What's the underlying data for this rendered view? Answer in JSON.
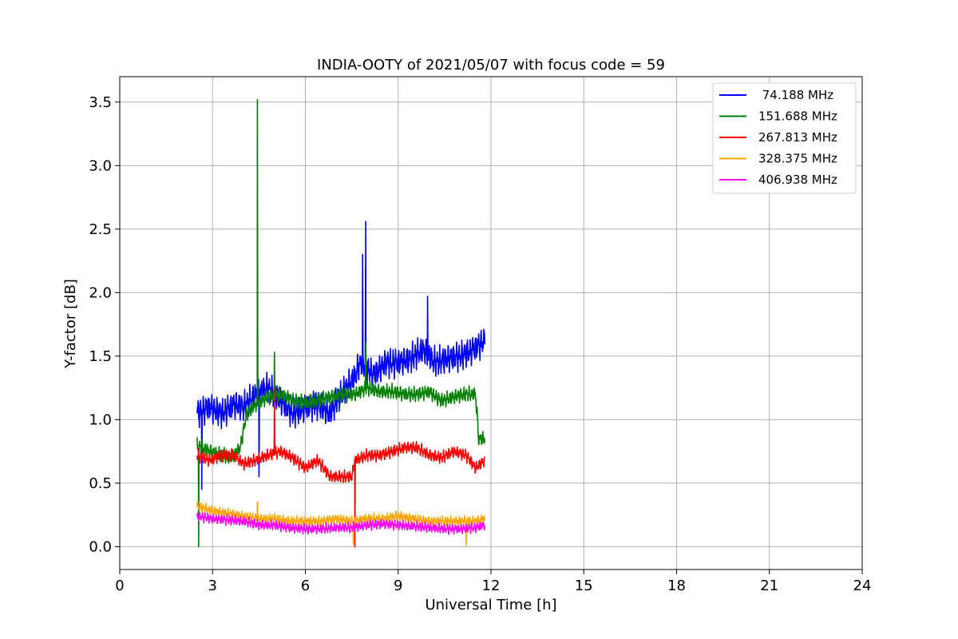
{
  "chart_data": {
    "type": "line",
    "title": "INDIA-OOTY of 2021/05/07 with focus code = 59",
    "xlabel": "Universal Time [h]",
    "ylabel": "Y-factor [dB]",
    "xlim": [
      0,
      24
    ],
    "ylim": [
      -0.18,
      3.7
    ],
    "xticks": [
      0,
      3,
      6,
      9,
      12,
      15,
      18,
      21,
      24
    ],
    "yticks": [
      0.0,
      0.5,
      1.0,
      1.5,
      2.0,
      2.5,
      3.0,
      3.5
    ],
    "xtick_labels": [
      "0",
      "3",
      "6",
      "9",
      "12",
      "15",
      "18",
      "21",
      "24"
    ],
    "ytick_labels": [
      "0.0",
      "0.5",
      "1.0",
      "1.5",
      "2.0",
      "2.5",
      "3.0",
      "3.5"
    ],
    "grid": true,
    "legend_position": "top-right",
    "series": [
      {
        "name": " 74.188 MHz",
        "color": "#0000ff",
        "x_range": [
          2.5,
          11.8
        ],
        "noise": 0.12,
        "values": [
          [
            2.5,
            1.05
          ],
          [
            2.9,
            1.1
          ],
          [
            3.3,
            1.05
          ],
          [
            3.7,
            1.12
          ],
          [
            4.0,
            1.1
          ],
          [
            4.4,
            1.2
          ],
          [
            4.8,
            1.25
          ],
          [
            5.2,
            1.15
          ],
          [
            5.6,
            1.05
          ],
          [
            6.0,
            1.1
          ],
          [
            6.4,
            1.12
          ],
          [
            6.8,
            1.05
          ],
          [
            7.1,
            1.18
          ],
          [
            7.5,
            1.3
          ],
          [
            7.8,
            1.45
          ],
          [
            8.2,
            1.35
          ],
          [
            8.6,
            1.45
          ],
          [
            9.0,
            1.45
          ],
          [
            9.4,
            1.48
          ],
          [
            9.8,
            1.55
          ],
          [
            10.2,
            1.45
          ],
          [
            10.6,
            1.48
          ],
          [
            11.0,
            1.5
          ],
          [
            11.4,
            1.55
          ],
          [
            11.8,
            1.62
          ]
        ],
        "spikes": [
          [
            2.65,
            0.45
          ],
          [
            4.5,
            0.55
          ],
          [
            7.85,
            2.3
          ],
          [
            7.95,
            2.56
          ],
          [
            9.95,
            1.97
          ]
        ]
      },
      {
        "name": "151.688 MHz",
        "color": "#008000",
        "x_range": [
          2.5,
          11.8
        ],
        "noise": 0.06,
        "values": [
          [
            2.5,
            0.8
          ],
          [
            2.9,
            0.75
          ],
          [
            3.3,
            0.72
          ],
          [
            3.6,
            0.7
          ],
          [
            3.9,
            0.78
          ],
          [
            4.1,
            1.05
          ],
          [
            4.4,
            1.12
          ],
          [
            4.8,
            1.18
          ],
          [
            5.2,
            1.2
          ],
          [
            5.6,
            1.15
          ],
          [
            6.0,
            1.13
          ],
          [
            6.4,
            1.15
          ],
          [
            6.8,
            1.18
          ],
          [
            7.2,
            1.2
          ],
          [
            7.6,
            1.2
          ],
          [
            8.0,
            1.25
          ],
          [
            8.4,
            1.22
          ],
          [
            8.8,
            1.22
          ],
          [
            9.2,
            1.2
          ],
          [
            9.6,
            1.2
          ],
          [
            10.0,
            1.22
          ],
          [
            10.4,
            1.15
          ],
          [
            10.8,
            1.18
          ],
          [
            11.2,
            1.2
          ],
          [
            11.5,
            1.2
          ],
          [
            11.6,
            0.85
          ],
          [
            11.8,
            0.85
          ]
        ],
        "spikes": [
          [
            2.55,
            0.0
          ],
          [
            4.45,
            3.52
          ],
          [
            5.0,
            1.53
          ],
          [
            7.95,
            1.6
          ],
          [
            11.55,
            1.1
          ]
        ]
      },
      {
        "name": "267.813 MHz",
        "color": "#ff0000",
        "x_range": [
          2.5,
          11.8
        ],
        "noise": 0.05,
        "values": [
          [
            2.5,
            0.72
          ],
          [
            2.9,
            0.68
          ],
          [
            3.3,
            0.72
          ],
          [
            3.7,
            0.72
          ],
          [
            4.0,
            0.65
          ],
          [
            4.4,
            0.68
          ],
          [
            4.8,
            0.72
          ],
          [
            5.2,
            0.75
          ],
          [
            5.6,
            0.7
          ],
          [
            6.0,
            0.62
          ],
          [
            6.4,
            0.68
          ],
          [
            6.8,
            0.55
          ],
          [
            7.2,
            0.55
          ],
          [
            7.5,
            0.55
          ],
          [
            7.6,
            0.68
          ],
          [
            8.0,
            0.72
          ],
          [
            8.4,
            0.72
          ],
          [
            8.8,
            0.75
          ],
          [
            9.2,
            0.78
          ],
          [
            9.6,
            0.78
          ],
          [
            10.0,
            0.72
          ],
          [
            10.4,
            0.7
          ],
          [
            10.8,
            0.75
          ],
          [
            11.2,
            0.72
          ],
          [
            11.5,
            0.62
          ],
          [
            11.8,
            0.68
          ]
        ],
        "spikes": [
          [
            5.0,
            1.25
          ],
          [
            7.6,
            0.0
          ]
        ]
      },
      {
        "name": "328.375 MHz",
        "color": "#ffa500",
        "x_range": [
          2.5,
          11.8
        ],
        "noise": 0.04,
        "values": [
          [
            2.5,
            0.32
          ],
          [
            3.0,
            0.28
          ],
          [
            3.5,
            0.26
          ],
          [
            4.0,
            0.24
          ],
          [
            4.5,
            0.22
          ],
          [
            5.0,
            0.22
          ],
          [
            5.5,
            0.2
          ],
          [
            6.0,
            0.2
          ],
          [
            6.5,
            0.2
          ],
          [
            7.0,
            0.22
          ],
          [
            7.5,
            0.2
          ],
          [
            8.0,
            0.22
          ],
          [
            8.5,
            0.22
          ],
          [
            9.0,
            0.24
          ],
          [
            9.5,
            0.22
          ],
          [
            10.0,
            0.2
          ],
          [
            10.5,
            0.2
          ],
          [
            11.0,
            0.2
          ],
          [
            11.5,
            0.2
          ],
          [
            11.8,
            0.22
          ]
        ],
        "spikes": [
          [
            4.45,
            0.35
          ],
          [
            7.55,
            0.02
          ],
          [
            11.2,
            0.01
          ]
        ]
      },
      {
        "name": "406.938 MHz",
        "color": "#ff00ff",
        "x_range": [
          2.5,
          11.8
        ],
        "noise": 0.04,
        "values": [
          [
            2.5,
            0.24
          ],
          [
            3.0,
            0.22
          ],
          [
            3.5,
            0.21
          ],
          [
            4.0,
            0.2
          ],
          [
            4.5,
            0.17
          ],
          [
            5.0,
            0.17
          ],
          [
            5.5,
            0.15
          ],
          [
            6.0,
            0.14
          ],
          [
            6.5,
            0.14
          ],
          [
            7.0,
            0.15
          ],
          [
            7.5,
            0.15
          ],
          [
            8.0,
            0.17
          ],
          [
            8.5,
            0.18
          ],
          [
            9.0,
            0.17
          ],
          [
            9.5,
            0.16
          ],
          [
            10.0,
            0.15
          ],
          [
            10.5,
            0.14
          ],
          [
            11.0,
            0.14
          ],
          [
            11.5,
            0.15
          ],
          [
            11.8,
            0.17
          ]
        ],
        "spikes": []
      }
    ]
  }
}
